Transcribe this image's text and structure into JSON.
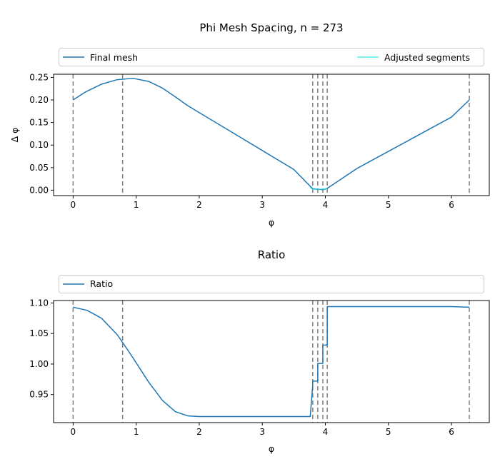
{
  "chart_data": [
    {
      "type": "line",
      "title": "Phi Mesh Spacing, n = 273",
      "xlabel": "φ",
      "ylabel": "Δ φ",
      "xlim": [
        -0.31,
        6.6
      ],
      "ylim": [
        -0.012,
        0.257
      ],
      "xticks": [
        0,
        1,
        2,
        3,
        4,
        5,
        6
      ],
      "yticks": [
        0.0,
        0.05,
        0.1,
        0.15,
        0.2,
        0.25
      ],
      "ytick_labels": [
        "0.00",
        "0.05",
        "0.10",
        "0.15",
        "0.20",
        "0.25"
      ],
      "grid": false,
      "legend": "top, full width",
      "vlines": [
        0,
        0.785,
        3.8,
        3.88,
        3.96,
        4.03,
        6.283
      ],
      "series": [
        {
          "name": "Final mesh",
          "color": "#1f77b4",
          "x": [
            0,
            0.2,
            0.45,
            0.7,
            0.95,
            1.2,
            1.42,
            1.62,
            1.8,
            2.0,
            2.5,
            3.0,
            3.5,
            3.8,
            3.96,
            4.03,
            4.5,
            5.0,
            5.5,
            6.0,
            6.283
          ],
          "y": [
            0.2,
            0.218,
            0.235,
            0.245,
            0.248,
            0.241,
            0.226,
            0.207,
            0.189,
            0.172,
            0.13,
            0.088,
            0.046,
            0.003,
            0.001,
            0.004,
            0.048,
            0.086,
            0.124,
            0.162,
            0.2
          ]
        },
        {
          "name": "Adjusted segments",
          "color": "#00e5e5",
          "x": [
            3.76,
            3.8,
            3.88,
            3.96,
            4.03
          ],
          "y": [
            0.006,
            0.002,
            0.002,
            0.002,
            0.004
          ]
        }
      ]
    },
    {
      "type": "line",
      "title": "Ratio",
      "xlabel": "φ",
      "ylabel": "",
      "xlim": [
        -0.31,
        6.6
      ],
      "ylim": [
        0.904,
        1.104
      ],
      "xticks": [
        0,
        1,
        2,
        3,
        4,
        5,
        6
      ],
      "yticks": [
        0.95,
        1.0,
        1.05,
        1.1
      ],
      "ytick_labels": [
        "0.95",
        "1.00",
        "1.05",
        "1.10"
      ],
      "grid": false,
      "legend": "top, full width",
      "vlines": [
        0,
        0.785,
        3.8,
        3.88,
        3.96,
        4.03,
        6.283
      ],
      "series": [
        {
          "name": "Ratio",
          "color": "#1f77b4",
          "x": [
            0,
            0.22,
            0.45,
            0.7,
            0.8,
            0.95,
            1.2,
            1.42,
            1.62,
            1.82,
            2.0,
            2.5,
            3.0,
            3.5,
            3.76,
            3.8,
            3.8,
            3.88,
            3.88,
            3.96,
            3.96,
            4.03,
            4.03,
            4.5,
            5.0,
            5.5,
            6.0,
            6.283
          ],
          "y": [
            1.093,
            1.088,
            1.075,
            1.048,
            1.033,
            1.01,
            0.97,
            0.94,
            0.922,
            0.915,
            0.914,
            0.914,
            0.914,
            0.914,
            0.914,
            0.965,
            0.972,
            0.972,
            1.001,
            1.001,
            1.031,
            1.031,
            1.094,
            1.094,
            1.094,
            1.094,
            1.094,
            1.093
          ]
        }
      ]
    }
  ]
}
